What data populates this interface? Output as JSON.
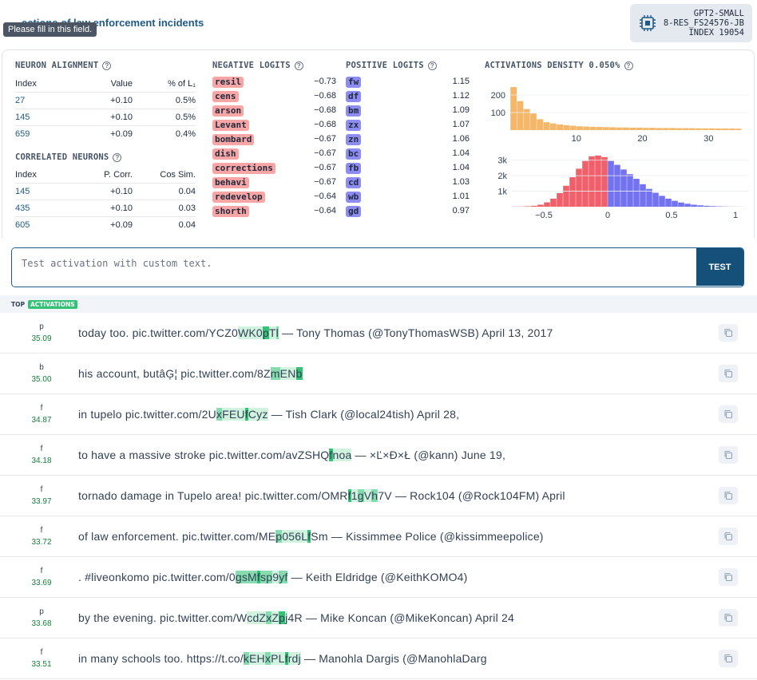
{
  "header": {
    "title_partial": "…ections of law enforcement incidents",
    "tooltip": "Please fill in this field.",
    "model": [
      "GPT2-SMALL",
      "8-RES_FS24576-JB",
      "INDEX 19054"
    ]
  },
  "neuron_alignment": {
    "title": "NEURON ALIGNMENT",
    "columns": [
      "Index",
      "Value",
      "% of L₁"
    ],
    "rows": [
      {
        "index": "27",
        "value": "+0.10",
        "pct": "0.5%"
      },
      {
        "index": "145",
        "value": "+0.10",
        "pct": "0.5%"
      },
      {
        "index": "659",
        "value": "+0.09",
        "pct": "0.4%"
      }
    ]
  },
  "correlated_neurons": {
    "title": "CORRELATED NEURONS",
    "columns": [
      "Index",
      "P. Corr.",
      "Cos Sim."
    ],
    "rows": [
      {
        "index": "145",
        "corr": "+0.10",
        "cos": "0.04"
      },
      {
        "index": "435",
        "corr": "+0.10",
        "cos": "0.03"
      },
      {
        "index": "605",
        "corr": "+0.09",
        "cos": "0.04"
      }
    ]
  },
  "negative_logits": {
    "title": "NEGATIVE LOGITS",
    "items": [
      {
        "token": "resil",
        "value": "−0.73"
      },
      {
        "token": "cens",
        "value": "−0.68"
      },
      {
        "token": "arson",
        "value": "−0.68"
      },
      {
        "token": "Levant",
        "value": "−0.68"
      },
      {
        "token": "bombard",
        "value": "−0.67"
      },
      {
        "token": "dish",
        "value": "−0.67"
      },
      {
        "token": "corrections",
        "value": "−0.67"
      },
      {
        "token": "behavi",
        "value": "−0.67"
      },
      {
        "token": "redevelop",
        "value": "−0.64"
      },
      {
        "token": "shorth",
        "value": "−0.64"
      }
    ]
  },
  "positive_logits": {
    "title": "POSITIVE LOGITS",
    "items": [
      {
        "token": "fw",
        "value": "1.15"
      },
      {
        "token": "df",
        "value": "1.12"
      },
      {
        "token": "bm",
        "value": "1.09"
      },
      {
        "token": "zx",
        "value": "1.07"
      },
      {
        "token": "zn",
        "value": "1.06"
      },
      {
        "token": "bc",
        "value": "1.04"
      },
      {
        "token": "fb",
        "value": "1.04"
      },
      {
        "token": "cd",
        "value": "1.03"
      },
      {
        "token": "wb",
        "value": "1.01"
      },
      {
        "token": "gd",
        "value": "0.97"
      }
    ]
  },
  "density": {
    "title": "ACTIVATIONS DENSITY 0.050%"
  },
  "chart_data": [
    {
      "type": "bar",
      "name": "activation-density",
      "color": "#f5b86a",
      "xlim": [
        0,
        36
      ],
      "ylim": [
        0,
        300
      ],
      "xticks": [
        "10",
        "20",
        "30"
      ],
      "yticks": [
        "100",
        "200"
      ],
      "x": [
        0.5,
        1.5,
        2.5,
        3.5,
        4.5,
        5.5,
        6.5,
        7.5,
        8.5,
        9.5,
        10.5,
        11.5,
        12.5,
        13.5,
        14.5,
        15.5,
        16.5,
        17.5,
        18.5,
        19.5,
        20.5,
        21.5,
        22.5,
        23.5,
        24.5,
        25.5,
        26.5,
        27.5,
        28.5,
        29.5,
        30.5,
        31.5,
        32.5,
        33.5,
        34.5
      ],
      "values": [
        245,
        165,
        120,
        95,
        62,
        45,
        38,
        32,
        28,
        25,
        22,
        20,
        19,
        18,
        17,
        16,
        15,
        15,
        14,
        14,
        13,
        13,
        12,
        12,
        12,
        11,
        11,
        11,
        10,
        10,
        10,
        9,
        9,
        9,
        8
      ]
    },
    {
      "type": "bar",
      "name": "logit-distribution",
      "neg_color": "#f0606a",
      "pos_color": "#7373f0",
      "xlim": [
        -0.75,
        1.1
      ],
      "ylim": [
        0,
        3500
      ],
      "xticks": [
        "−0.5",
        "0",
        "0.5",
        "1"
      ],
      "yticks": [
        "1k",
        "2k",
        "3k"
      ],
      "x": [
        -0.725,
        -0.675,
        -0.625,
        -0.575,
        -0.525,
        -0.475,
        -0.425,
        -0.375,
        -0.325,
        -0.275,
        -0.225,
        -0.175,
        -0.125,
        -0.075,
        -0.025,
        0.025,
        0.075,
        0.125,
        0.175,
        0.225,
        0.275,
        0.325,
        0.375,
        0.425,
        0.475,
        0.525,
        0.575,
        0.625,
        0.675,
        0.725,
        0.775,
        0.825,
        0.875,
        0.925,
        0.975,
        1.025,
        1.075
      ],
      "values": [
        10,
        15,
        30,
        60,
        130,
        280,
        520,
        880,
        1350,
        1900,
        2450,
        2950,
        3250,
        3300,
        3200,
        2950,
        2700,
        2400,
        2100,
        1800,
        1450,
        1150,
        900,
        700,
        520,
        380,
        270,
        190,
        130,
        90,
        60,
        40,
        25,
        15,
        10,
        5,
        3
      ]
    }
  ],
  "test": {
    "placeholder": "Test activation with custom text.",
    "button": "TEST"
  },
  "activations": {
    "label_top": "TOP",
    "label_badge": "ACTIVATIONS",
    "rows": [
      {
        "token": "p",
        "value": "35.09",
        "segments": [
          {
            "t": "today too. pic.twitter.com/YCZ0",
            "h": ""
          },
          {
            "t": "WK0",
            "h": "l"
          },
          {
            "t": "p",
            "h": "h"
          },
          {
            "t": "T",
            "h": "l"
          },
          {
            "t": "l",
            "h": "m"
          },
          {
            "t": " — Tony Thomas (@TonyThomasWSB) April 13, 2017",
            "h": ""
          }
        ]
      },
      {
        "token": "b",
        "value": "35.00",
        "segments": [
          {
            "t": "his account, butâĢ¦ pic.twitter.com/8Z",
            "h": ""
          },
          {
            "t": "m",
            "h": "m"
          },
          {
            "t": "EN",
            "h": "l"
          },
          {
            "t": "b",
            "h": "h"
          }
        ]
      },
      {
        "token": "f",
        "value": "34.87",
        "segments": [
          {
            "t": "in tupelo pic.twitter.com/2U",
            "h": ""
          },
          {
            "t": "x",
            "h": "m"
          },
          {
            "t": "FEU",
            "h": "l"
          },
          {
            "t": "f",
            "h": "h"
          },
          {
            "t": "Cyz",
            "h": "l"
          },
          {
            "t": " — Tish Clark (@local24tish) April 28,",
            "h": ""
          }
        ]
      },
      {
        "token": "f",
        "value": "34.18",
        "segments": [
          {
            "t": "to have a massive stroke pic.twitter.com/avZSHQ",
            "h": ""
          },
          {
            "t": "f",
            "h": "h"
          },
          {
            "t": "noa",
            "h": "l"
          },
          {
            "t": " — ×Ľ×Đ×Ł (@kann) June 19,",
            "h": ""
          }
        ]
      },
      {
        "token": "f",
        "value": "33.97",
        "segments": [
          {
            "t": "tornado damage in Tupelo area! pic.twitter.com/OMR",
            "h": ""
          },
          {
            "t": "f",
            "h": "h"
          },
          {
            "t": "1",
            "h": "l"
          },
          {
            "t": "g",
            "h": "m"
          },
          {
            "t": "V",
            "h": "l"
          },
          {
            "t": "h",
            "h": "m"
          },
          {
            "t": "7V — Rock104 (@Rock104FM) April",
            "h": ""
          }
        ]
      },
      {
        "token": "f",
        "value": "33.72",
        "segments": [
          {
            "t": "of law enforcement. pic.twitter.com/ME",
            "h": ""
          },
          {
            "t": "p",
            "h": "m"
          },
          {
            "t": "056L",
            "h": "l"
          },
          {
            "t": "f",
            "h": "h"
          },
          {
            "t": "Sm — Kissimmee Police (@kissimmeepolice)",
            "h": ""
          }
        ]
      },
      {
        "token": "f",
        "value": "33.69",
        "segments": [
          {
            "t": ". #liveonkomo pic.twitter.com/0",
            "h": ""
          },
          {
            "t": "gsM",
            "h": "m"
          },
          {
            "t": "f",
            "h": "h"
          },
          {
            "t": "sp",
            "h": "m"
          },
          {
            "t": "9",
            "h": "l"
          },
          {
            "t": "yf",
            "h": "m"
          },
          {
            "t": " — Keith Eldridge (@KeithKOMO4)",
            "h": ""
          }
        ]
      },
      {
        "token": "p",
        "value": "33.68",
        "segments": [
          {
            "t": "by the evening. pic.twitter.com/W",
            "h": ""
          },
          {
            "t": "cdZ",
            "h": "l"
          },
          {
            "t": "x",
            "h": "m"
          },
          {
            "t": "Z",
            "h": "l"
          },
          {
            "t": "p",
            "h": "h"
          },
          {
            "t": "j",
            "h": "l"
          },
          {
            "t": "4R — Mike Koncan (@MikeKoncan) April 24",
            "h": ""
          }
        ]
      },
      {
        "token": "f",
        "value": "33.51",
        "segments": [
          {
            "t": "in many schools too. https://t.co/",
            "h": ""
          },
          {
            "t": "k",
            "h": "m"
          },
          {
            "t": "EH",
            "h": "l"
          },
          {
            "t": "x",
            "h": "m"
          },
          {
            "t": "PL",
            "h": "l"
          },
          {
            "t": "f",
            "h": "h"
          },
          {
            "t": "rdj",
            "h": "l"
          },
          {
            "t": " — Manohla Dargis (@ManohlaDarg",
            "h": ""
          }
        ]
      }
    ]
  }
}
